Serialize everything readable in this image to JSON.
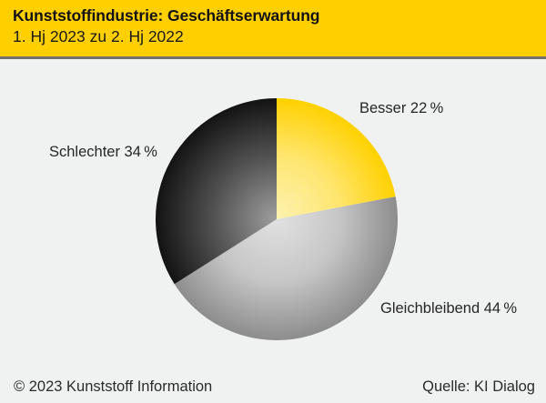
{
  "header": {
    "title": "Kunststoffindustrie: Geschäftserwartung",
    "subtitle": "1. Hj 2023 zu 2. Hj 2022"
  },
  "footer": {
    "copyright": "© 2023 Kunststoff Information",
    "source": "Quelle: KI Dialog"
  },
  "colors": {
    "header_background": "#FFCF00",
    "header_rule": "#73716A",
    "page_background": "#F0F1F1",
    "text": "#1A1A1A"
  },
  "chart_data": {
    "type": "pie",
    "title": "Kunststoffindustrie: Geschäftserwartung",
    "subtitle": "1. Hj 2023 zu 2. Hj 2022",
    "start_angle": "12 o'clock",
    "direction": "clockwise",
    "legend_position": "labels next to slices",
    "categories": [
      "Besser",
      "Gleichbleibend",
      "Schlechter"
    ],
    "values": [
      22,
      44,
      34
    ],
    "unit": "%",
    "slices": [
      {
        "label": "Besser",
        "value_pct": 22,
        "display": "Besser 22 %",
        "gradient": {
          "center": "#FBF2B0",
          "mid": "#FFE671",
          "rim": "#FFD100"
        }
      },
      {
        "label": "Gleichbleibend",
        "value_pct": 44,
        "display": "Gleichbleibend 44 %",
        "gradient": {
          "center": "#E1E1E1",
          "mid": "#C6C6C6",
          "rim": "#8D8D8D"
        }
      },
      {
        "label": "Schlechter",
        "value_pct": 34,
        "display": "Schlechter 34 %",
        "gradient": {
          "center": "#9E9E9E",
          "mid": "#525252",
          "rim": "#131313"
        }
      }
    ]
  }
}
